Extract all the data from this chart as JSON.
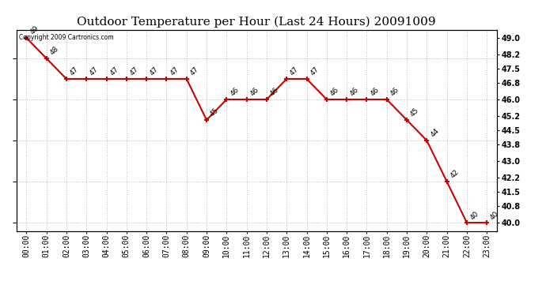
{
  "title": "Outdoor Temperature per Hour (Last 24 Hours) 20091009",
  "copyright": "Copyright 2009 Cartronics.com",
  "hours": [
    "00:00",
    "01:00",
    "02:00",
    "03:00",
    "04:00",
    "05:00",
    "06:00",
    "07:00",
    "08:00",
    "09:00",
    "10:00",
    "11:00",
    "12:00",
    "13:00",
    "14:00",
    "15:00",
    "16:00",
    "17:00",
    "18:00",
    "19:00",
    "20:00",
    "21:00",
    "22:00",
    "23:00"
  ],
  "temps": [
    49,
    48,
    47,
    47,
    47,
    47,
    47,
    47,
    47,
    45,
    46,
    46,
    46,
    47,
    47,
    46,
    46,
    46,
    46,
    45,
    44,
    42,
    40,
    40
  ],
  "line_color": "#cc0000",
  "marker_color": "#cc0000",
  "bg_color": "#ffffff",
  "grid_color": "#bbbbbb",
  "ylim": [
    39.6,
    49.4
  ],
  "yticks_right": [
    40.0,
    40.8,
    41.5,
    42.2,
    43.0,
    43.8,
    44.5,
    45.2,
    46.0,
    46.8,
    47.5,
    48.2,
    49.0
  ],
  "title_fontsize": 11,
  "label_fontsize": 7,
  "annotation_fontsize": 6.5
}
